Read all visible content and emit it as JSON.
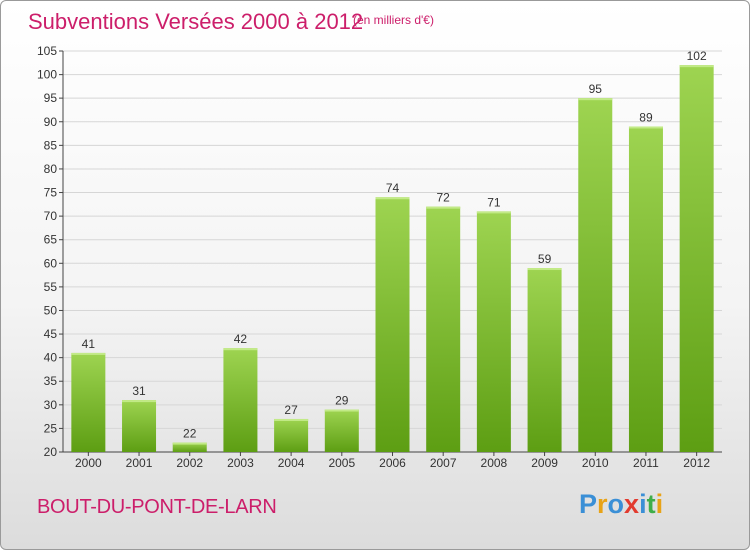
{
  "title": "Subventions Versées 2000 à 2012",
  "subtitle": "(en milliers d'€)",
  "commune": "BOUT-DU-PONT-DE-LARN",
  "logo": {
    "letters": [
      "P",
      "r",
      "o",
      "x",
      "i",
      "t",
      "i"
    ],
    "colors": [
      "#3a8fd6",
      "#e8a317",
      "#3a8fd6",
      "#e23b2f",
      "#3a8fd6",
      "#3fae49",
      "#e8a317"
    ]
  },
  "colors": {
    "bar_top": "#9ed451",
    "bar_bottom": "#5d9e13",
    "text": "#cc1e6a",
    "axis": "#444444",
    "grid": "#d6d6d6"
  },
  "chart_data": {
    "type": "bar",
    "categories": [
      "2000",
      "2001",
      "2002",
      "2003",
      "2004",
      "2005",
      "2006",
      "2007",
      "2008",
      "2009",
      "2010",
      "2011",
      "2012"
    ],
    "values": [
      41,
      31,
      22,
      42,
      27,
      29,
      74,
      72,
      71,
      59,
      95,
      89,
      102
    ],
    "title": "Subventions Versées 2000 à 2012",
    "ylim": [
      20,
      105
    ],
    "yticks": [
      20,
      25,
      30,
      35,
      40,
      45,
      50,
      55,
      60,
      65,
      70,
      75,
      80,
      85,
      90,
      95,
      100,
      105
    ],
    "grid": true,
    "data_labels": true
  }
}
